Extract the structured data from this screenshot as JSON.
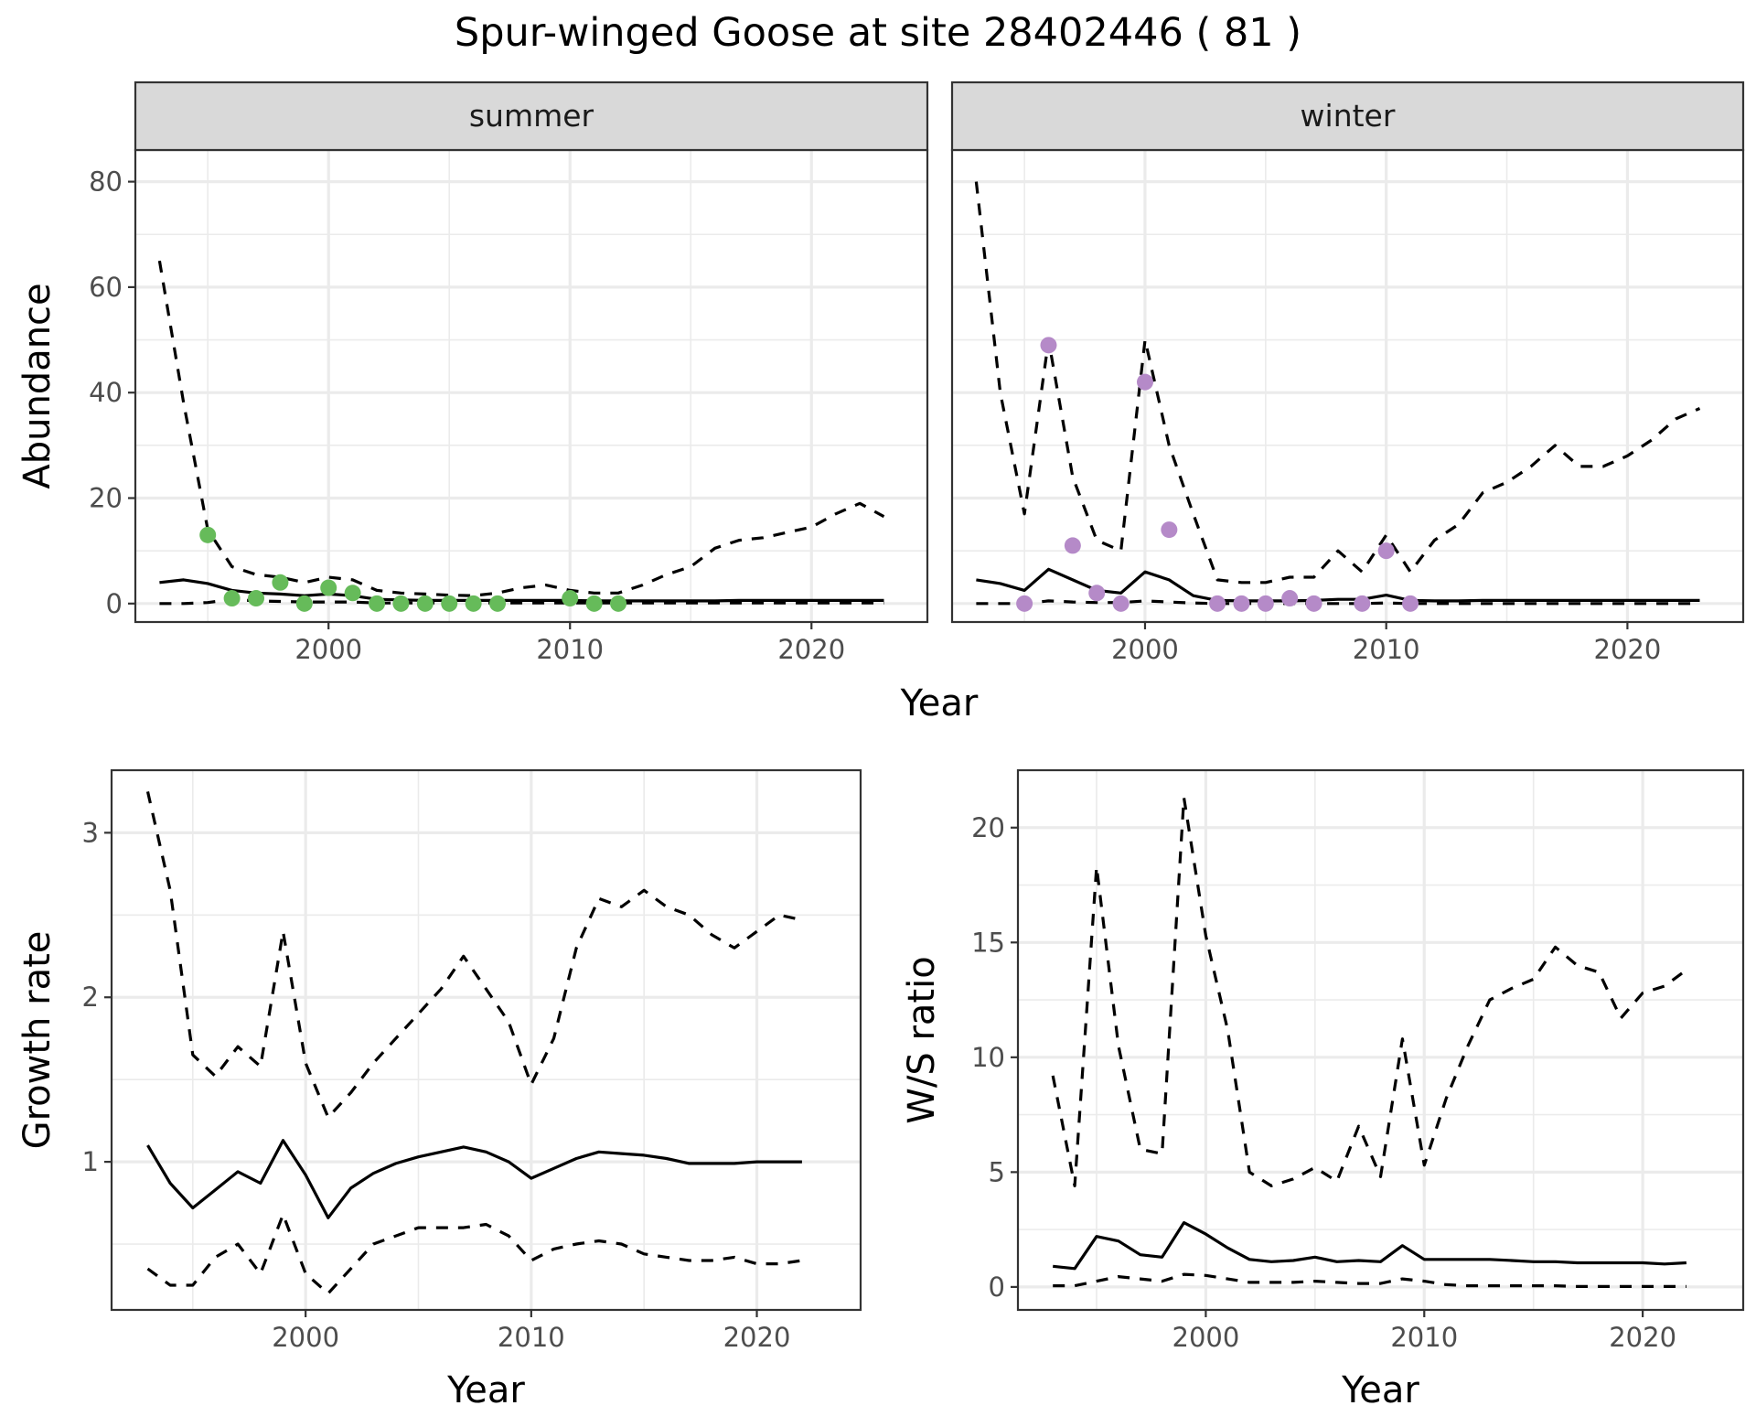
{
  "figure": {
    "title": "Spur-winged Goose at site 28402446 ( 81 )",
    "summer_color": "#66BB5A",
    "winter_color": "#B58AC8"
  },
  "chart_data": [
    {
      "id": "abundance-summer",
      "type": "line",
      "strip_label": "summer",
      "xlabel": "",
      "ylabel": "Abundance",
      "xlim": [
        1992,
        2024.8
      ],
      "ylim": [
        -3.5,
        86
      ],
      "x_ticks": [
        2000,
        2010,
        2020
      ],
      "y_ticks": [
        0,
        20,
        40,
        60,
        80
      ],
      "series": [
        {
          "role": "estimate",
          "x": [
            1993,
            1994,
            1995,
            1996,
            1997,
            1998,
            1999,
            2000,
            2001,
            2002,
            2003,
            2004,
            2005,
            2006,
            2007,
            2008,
            2009,
            2010,
            2011,
            2012,
            2013,
            2014,
            2015,
            2016,
            2017,
            2018,
            2019,
            2020,
            2021,
            2022,
            2023
          ],
          "y": [
            4.0,
            4.5,
            3.8,
            2.5,
            2.0,
            1.8,
            1.5,
            1.8,
            1.5,
            0.8,
            0.7,
            0.6,
            0.6,
            0.6,
            0.6,
            0.6,
            0.6,
            0.6,
            0.5,
            0.5,
            0.5,
            0.5,
            0.5,
            0.5,
            0.6,
            0.6,
            0.6,
            0.6,
            0.6,
            0.6,
            0.6
          ]
        },
        {
          "role": "upper",
          "x": [
            1993,
            1994,
            1995,
            1996,
            1997,
            1998,
            1999,
            2000,
            2001,
            2002,
            2003,
            2004,
            2005,
            2006,
            2007,
            2008,
            2009,
            2010,
            2011,
            2012,
            2013,
            2014,
            2015,
            2016,
            2017,
            2018,
            2019,
            2020,
            2021,
            2022,
            2023
          ],
          "y": [
            65,
            38,
            14,
            7,
            5.5,
            5,
            4,
            5,
            4.5,
            2.5,
            2,
            1.8,
            1.6,
            1.5,
            2,
            3,
            3.5,
            2.5,
            2,
            2,
            3.5,
            5.5,
            7,
            10.5,
            12,
            12.5,
            13.5,
            14.5,
            17,
            19,
            16.5
          ]
        },
        {
          "role": "lower",
          "x": [
            1993,
            1994,
            1995,
            1996,
            1997,
            1998,
            1999,
            2000,
            2001,
            2002,
            2003,
            2004,
            2005,
            2006,
            2007,
            2008,
            2009,
            2010,
            2011,
            2012,
            2013,
            2014,
            2015,
            2016,
            2017,
            2018,
            2019,
            2020,
            2021,
            2022,
            2023
          ],
          "y": [
            0,
            0,
            0.2,
            0.8,
            0.5,
            0.4,
            0.3,
            0.3,
            0.3,
            0.1,
            0.1,
            0.1,
            0.1,
            0.1,
            0.1,
            0.1,
            0.1,
            0.1,
            0.1,
            0.1,
            0.1,
            0.1,
            0.1,
            0.1,
            0.1,
            0.1,
            0.1,
            0.1,
            0.1,
            0.1,
            0.1
          ]
        }
      ],
      "points": {
        "x": [
          1995,
          1996,
          1997,
          1998,
          1999,
          2000,
          2001,
          2002,
          2003,
          2004,
          2005,
          2006,
          2007,
          2010,
          2011,
          2012
        ],
        "y": [
          13,
          1,
          1,
          4,
          0,
          3,
          2,
          0,
          0,
          0,
          0,
          0,
          0,
          1,
          0,
          0
        ]
      }
    },
    {
      "id": "abundance-winter",
      "type": "line",
      "strip_label": "winter",
      "xlabel": "",
      "ylabel": "",
      "xlim": [
        1992,
        2024.8
      ],
      "ylim": [
        -3.5,
        86
      ],
      "x_ticks": [
        2000,
        2010,
        2020
      ],
      "y_ticks": [
        0,
        20,
        40,
        60,
        80
      ],
      "series": [
        {
          "role": "estimate",
          "x": [
            1993,
            1994,
            1995,
            1996,
            1997,
            1998,
            1999,
            2000,
            2001,
            2002,
            2003,
            2004,
            2005,
            2006,
            2007,
            2008,
            2009,
            2010,
            2011,
            2012,
            2013,
            2014,
            2015,
            2016,
            2017,
            2018,
            2019,
            2020,
            2021,
            2022,
            2023
          ],
          "y": [
            4.5,
            3.8,
            2.5,
            6.5,
            4.5,
            2.5,
            2.0,
            6.0,
            4.5,
            1.5,
            0.6,
            0.5,
            0.5,
            0.5,
            0.6,
            0.8,
            0.8,
            1.6,
            0.6,
            0.5,
            0.5,
            0.6,
            0.6,
            0.6,
            0.6,
            0.6,
            0.6,
            0.6,
            0.6,
            0.6,
            0.6
          ]
        },
        {
          "role": "upper",
          "x": [
            1993,
            1994,
            1995,
            1996,
            1997,
            1998,
            1999,
            2000,
            2001,
            2002,
            2003,
            2004,
            2005,
            2006,
            2007,
            2008,
            2009,
            2010,
            2011,
            2012,
            2013,
            2014,
            2015,
            2016,
            2017,
            2018,
            2019,
            2020,
            2021,
            2022,
            2023
          ],
          "y": [
            80,
            40,
            17,
            50,
            24,
            12,
            10,
            50,
            30,
            17,
            4.5,
            4,
            4,
            5,
            5,
            10,
            6,
            13,
            6,
            12,
            15,
            21,
            23,
            26,
            30,
            26,
            26,
            28,
            31,
            35,
            37
          ]
        },
        {
          "role": "lower",
          "x": [
            1993,
            1994,
            1995,
            1996,
            1997,
            1998,
            1999,
            2000,
            2001,
            2002,
            2003,
            2004,
            2005,
            2006,
            2007,
            2008,
            2009,
            2010,
            2011,
            2012,
            2013,
            2014,
            2015,
            2016,
            2017,
            2018,
            2019,
            2020,
            2021,
            2022,
            2023
          ],
          "y": [
            0,
            0,
            0,
            0.5,
            0.3,
            0.2,
            0.2,
            0.5,
            0.3,
            0.1,
            0,
            0,
            0,
            0,
            0,
            0,
            0,
            0.1,
            0,
            0,
            0,
            0,
            0,
            0,
            0,
            0,
            0,
            0,
            0,
            0,
            0
          ]
        }
      ],
      "points": {
        "x": [
          1995,
          1996,
          1997,
          1998,
          1999,
          2000,
          2001,
          2003,
          2004,
          2005,
          2006,
          2007,
          2009,
          2010,
          2011
        ],
        "y": [
          0,
          49,
          11,
          2,
          0,
          42,
          14,
          0,
          0,
          0,
          1,
          0,
          0,
          10,
          0
        ]
      }
    },
    {
      "id": "growth-rate",
      "type": "line",
      "xlabel": "Year",
      "ylabel": "Growth rate",
      "xlim": [
        1991.4,
        2024.6
      ],
      "ylim": [
        0.1,
        3.38
      ],
      "x_ticks": [
        2000,
        2010,
        2020
      ],
      "y_ticks": [
        1,
        2,
        3
      ],
      "series": [
        {
          "role": "estimate",
          "x": [
            1993,
            1994,
            1995,
            1996,
            1997,
            1998,
            1999,
            2000,
            2001,
            2002,
            2003,
            2004,
            2005,
            2006,
            2007,
            2008,
            2009,
            2010,
            2011,
            2012,
            2013,
            2014,
            2015,
            2016,
            2017,
            2018,
            2019,
            2020,
            2021,
            2022
          ],
          "y": [
            1.1,
            0.87,
            0.72,
            0.83,
            0.94,
            0.87,
            1.13,
            0.92,
            0.66,
            0.84,
            0.93,
            0.99,
            1.03,
            1.06,
            1.09,
            1.06,
            1.0,
            0.9,
            0.96,
            1.02,
            1.06,
            1.05,
            1.04,
            1.02,
            0.99,
            0.99,
            0.99,
            1.0,
            1.0,
            1.0
          ]
        },
        {
          "role": "upper",
          "x": [
            1993,
            1994,
            1995,
            1996,
            1997,
            1998,
            1999,
            2000,
            2001,
            2002,
            2003,
            2004,
            2005,
            2006,
            2007,
            2008,
            2009,
            2010,
            2011,
            2012,
            2013,
            2014,
            2015,
            2016,
            2017,
            2018,
            2019,
            2020,
            2021,
            2022
          ],
          "y": [
            3.25,
            2.65,
            1.65,
            1.52,
            1.7,
            1.58,
            2.4,
            1.6,
            1.27,
            1.42,
            1.6,
            1.75,
            1.9,
            2.05,
            2.25,
            2.05,
            1.85,
            1.47,
            1.75,
            2.3,
            2.6,
            2.55,
            2.65,
            2.55,
            2.5,
            2.38,
            2.3,
            2.4,
            2.5,
            2.47
          ]
        },
        {
          "role": "lower",
          "x": [
            1993,
            1994,
            1995,
            1996,
            1997,
            1998,
            1999,
            2000,
            2001,
            2002,
            2003,
            2004,
            2005,
            2006,
            2007,
            2008,
            2009,
            2010,
            2011,
            2012,
            2013,
            2014,
            2015,
            2016,
            2017,
            2018,
            2019,
            2020,
            2021,
            2022
          ],
          "y": [
            0.35,
            0.25,
            0.25,
            0.42,
            0.5,
            0.32,
            0.68,
            0.32,
            0.2,
            0.35,
            0.5,
            0.55,
            0.6,
            0.6,
            0.6,
            0.62,
            0.55,
            0.4,
            0.47,
            0.5,
            0.52,
            0.5,
            0.44,
            0.42,
            0.4,
            0.4,
            0.42,
            0.38,
            0.38,
            0.4
          ]
        }
      ]
    },
    {
      "id": "ws-ratio",
      "type": "line",
      "xlabel": "Year",
      "ylabel": "W/S ratio",
      "xlim": [
        1991.4,
        2024.6
      ],
      "ylim": [
        -1.0,
        22.5
      ],
      "x_ticks": [
        2000,
        2010,
        2020
      ],
      "y_ticks": [
        0,
        5,
        10,
        15,
        20
      ],
      "series": [
        {
          "role": "estimate",
          "x": [
            1993,
            1994,
            1995,
            1996,
            1997,
            1998,
            1999,
            2000,
            2001,
            2002,
            2003,
            2004,
            2005,
            2006,
            2007,
            2008,
            2009,
            2010,
            2011,
            2012,
            2013,
            2014,
            2015,
            2016,
            2017,
            2018,
            2019,
            2020,
            2021,
            2022
          ],
          "y": [
            0.9,
            0.8,
            2.2,
            2.0,
            1.4,
            1.3,
            2.8,
            2.3,
            1.7,
            1.2,
            1.1,
            1.15,
            1.3,
            1.1,
            1.15,
            1.1,
            1.8,
            1.2,
            1.2,
            1.2,
            1.2,
            1.15,
            1.1,
            1.1,
            1.05,
            1.05,
            1.05,
            1.05,
            1.0,
            1.05
          ]
        },
        {
          "role": "upper",
          "x": [
            1993,
            1994,
            1995,
            1996,
            1997,
            1998,
            1999,
            2000,
            2001,
            2002,
            2003,
            2004,
            2005,
            2006,
            2007,
            2008,
            2009,
            2010,
            2011,
            2012,
            2013,
            2014,
            2015,
            2016,
            2017,
            2018,
            2019,
            2020,
            2021,
            2022
          ],
          "y": [
            9.2,
            4.4,
            18.3,
            10.5,
            6.0,
            5.8,
            21.3,
            15.3,
            11.2,
            5.0,
            4.4,
            4.7,
            5.2,
            4.6,
            7.0,
            4.8,
            10.8,
            5.3,
            8.2,
            10.5,
            12.5,
            13.0,
            13.4,
            14.8,
            14.0,
            13.7,
            11.7,
            12.8,
            13.1,
            13.8
          ]
        },
        {
          "role": "lower",
          "x": [
            1993,
            1994,
            1995,
            1996,
            1997,
            1998,
            1999,
            2000,
            2001,
            2002,
            2003,
            2004,
            2005,
            2006,
            2007,
            2008,
            2009,
            2010,
            2011,
            2012,
            2013,
            2014,
            2015,
            2016,
            2017,
            2018,
            2019,
            2020,
            2021,
            2022
          ],
          "y": [
            0.05,
            0.05,
            0.25,
            0.45,
            0.35,
            0.25,
            0.55,
            0.5,
            0.35,
            0.2,
            0.2,
            0.2,
            0.25,
            0.2,
            0.15,
            0.15,
            0.35,
            0.25,
            0.1,
            0.05,
            0.05,
            0.05,
            0.05,
            0.05,
            0.02,
            0.02,
            0.02,
            0.02,
            0.02,
            0.02
          ]
        }
      ]
    }
  ],
  "shared": {
    "top_xlabel": "Year"
  }
}
